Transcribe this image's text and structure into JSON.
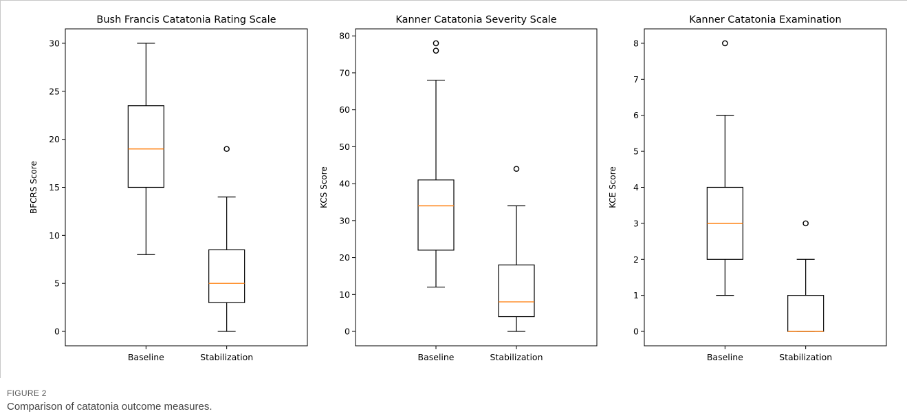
{
  "figure": {
    "label": "FIGURE 2",
    "caption": "Comparison of catatonia outcome measures."
  },
  "colors": {
    "box": "#000000",
    "median": "#ff7f0e",
    "flier": "#000000"
  },
  "chart_data": [
    {
      "type": "box",
      "title": "Bush Francis Catatonia Rating Scale",
      "ylabel": "BFCRS Score",
      "categories": [
        "Baseline",
        "Stabilization"
      ],
      "ylim": [
        -1.5,
        31.5
      ],
      "yticks": [
        0,
        5,
        10,
        15,
        20,
        25,
        30
      ],
      "boxes": [
        {
          "whisker_low": 8,
          "q1": 15,
          "median": 19,
          "q3": 23.5,
          "whisker_high": 30,
          "fliers": []
        },
        {
          "whisker_low": 0,
          "q1": 3,
          "median": 5,
          "q3": 8.5,
          "whisker_high": 14,
          "fliers": [
            19
          ]
        }
      ]
    },
    {
      "type": "box",
      "title": "Kanner Catatonia Severity Scale",
      "ylabel": "KCS Score",
      "categories": [
        "Baseline",
        "Stabilization"
      ],
      "ylim": [
        -3.9,
        81.9
      ],
      "yticks": [
        0,
        10,
        20,
        30,
        40,
        50,
        60,
        70,
        80
      ],
      "boxes": [
        {
          "whisker_low": 12,
          "q1": 22,
          "median": 34,
          "q3": 41,
          "whisker_high": 68,
          "fliers": [
            76,
            78
          ]
        },
        {
          "whisker_low": 0,
          "q1": 4,
          "median": 8,
          "q3": 18,
          "whisker_high": 34,
          "fliers": [
            44
          ]
        }
      ]
    },
    {
      "type": "box",
      "title": "Kanner Catatonia Examination",
      "ylabel": "KCE Score",
      "categories": [
        "Baseline",
        "Stabilization"
      ],
      "ylim": [
        -0.4,
        8.4
      ],
      "yticks": [
        0,
        1,
        2,
        3,
        4,
        5,
        6,
        7,
        8
      ],
      "boxes": [
        {
          "whisker_low": 1,
          "q1": 2,
          "median": 3,
          "q3": 4,
          "whisker_high": 6,
          "fliers": [
            8
          ]
        },
        {
          "whisker_low": 0,
          "q1": 0,
          "median": 0,
          "q3": 1,
          "whisker_high": 2,
          "fliers": [
            3
          ]
        }
      ]
    }
  ]
}
